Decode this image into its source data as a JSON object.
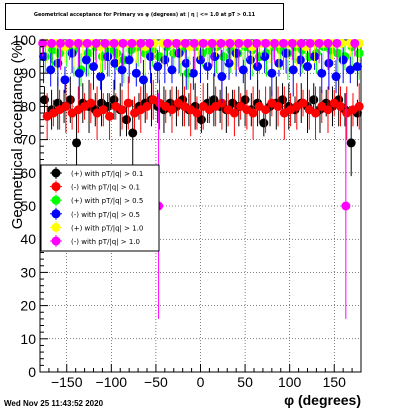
{
  "title": "Geometrical acceptance for Primary vs φ (degrees) at | η | <= 1.0 at pT > 0.11",
  "timestamp": "Wed Nov 25 11:43:52 2020",
  "chart_data": {
    "type": "scatter",
    "xlabel": "φ (degrees)",
    "ylabel": "Geometrical acceptance (%)",
    "xlim": [
      -180,
      180
    ],
    "ylim": [
      0,
      100
    ],
    "xticks": [
      -150,
      -100,
      -50,
      0,
      50,
      100,
      150
    ],
    "yticks": [
      0,
      10,
      20,
      30,
      40,
      50,
      60,
      70,
      80,
      90,
      100
    ],
    "grid": true,
    "legend_position": "left-middle",
    "series": [
      {
        "name": "(+) with pT/|q| > 0.1",
        "color": "#000000",
        "x": [
          -175,
          -167,
          -160,
          -153,
          -146,
          -139,
          -132,
          -125,
          -118,
          -111,
          -104,
          -97,
          -90,
          -83,
          -76,
          -69,
          -62,
          -55,
          -48,
          -41,
          -34,
          -27,
          -20,
          -13,
          -6,
          1,
          8,
          15,
          22,
          29,
          36,
          43,
          50,
          57,
          64,
          71,
          78,
          85,
          92,
          99,
          106,
          113,
          120,
          127,
          134,
          141,
          148,
          155,
          162,
          169,
          176
        ],
        "y": [
          82,
          79,
          81,
          80,
          82,
          69,
          81,
          80,
          79,
          81,
          80,
          82,
          79,
          76,
          72,
          80,
          81,
          82,
          80,
          79,
          81,
          80,
          82,
          79,
          80,
          76,
          81,
          82,
          80,
          79,
          81,
          80,
          82,
          79,
          81,
          75,
          80,
          81,
          82,
          80,
          79,
          81,
          80,
          82,
          79,
          81,
          80,
          82,
          79,
          69,
          78
        ]
      },
      {
        "name": "(-) with pT/|q| > 0.1",
        "color": "#ff0000",
        "x": [
          -172,
          -165,
          -158,
          -151,
          -144,
          -137,
          -130,
          -123,
          -116,
          -109,
          -102,
          -95,
          -88,
          -81,
          -74,
          -67,
          -60,
          -53,
          -46,
          -39,
          -32,
          -25,
          -18,
          -11,
          -4,
          3,
          10,
          17,
          24,
          31,
          38,
          45,
          52,
          59,
          66,
          73,
          80,
          87,
          94,
          101,
          108,
          115,
          122,
          129,
          136,
          143,
          150,
          157,
          164,
          171,
          178
        ],
        "y": [
          77,
          78,
          79,
          80,
          78,
          79,
          80,
          81,
          78,
          79,
          77,
          80,
          79,
          81,
          78,
          79,
          80,
          82,
          81,
          80,
          79,
          81,
          80,
          79,
          78,
          80,
          79,
          80,
          81,
          79,
          78,
          80,
          79,
          78,
          80,
          79,
          81,
          80,
          78,
          79,
          80,
          81,
          79,
          78,
          80,
          79,
          81,
          80,
          78,
          79,
          80
        ]
      },
      {
        "name": "(+) with pT/|q| > 0.5",
        "color": "#00ff00",
        "x": [
          -174,
          -166,
          -158,
          -150,
          -142,
          -134,
          -126,
          -118,
          -110,
          -102,
          -94,
          -86,
          -78,
          -70,
          -62,
          -54,
          -46,
          -38,
          -30,
          -22,
          -14,
          -6,
          2,
          10,
          18,
          26,
          34,
          42,
          50,
          58,
          66,
          74,
          82,
          90,
          98,
          106,
          114,
          122,
          130,
          138,
          146,
          154,
          162,
          170,
          178
        ],
        "y": [
          95,
          97,
          96,
          98,
          97,
          91,
          96,
          98,
          95,
          97,
          96,
          94,
          97,
          98,
          96,
          97,
          95,
          98,
          96,
          97,
          90,
          98,
          96,
          97,
          98,
          95,
          97,
          96,
          98,
          97,
          95,
          96,
          98,
          97,
          96,
          98,
          97,
          95,
          96,
          98,
          97,
          96,
          95,
          98,
          96
        ]
      },
      {
        "name": "(-) with pT/|q| > 0.5",
        "color": "#0000ff",
        "x": [
          -176,
          -168,
          -160,
          -152,
          -144,
          -136,
          -128,
          -120,
          -112,
          -104,
          -96,
          -88,
          -80,
          -72,
          -64,
          -56,
          -48,
          -40,
          -32,
          -24,
          -16,
          -8,
          0,
          8,
          16,
          24,
          32,
          40,
          48,
          56,
          64,
          72,
          80,
          88,
          96,
          104,
          112,
          120,
          128,
          136,
          144,
          152,
          160,
          168,
          176
        ],
        "y": [
          95,
          91,
          93,
          88,
          96,
          90,
          94,
          92,
          89,
          95,
          93,
          91,
          94,
          90,
          88,
          95,
          92,
          94,
          91,
          96,
          93,
          90,
          94,
          92,
          95,
          89,
          93,
          96,
          91,
          94,
          92,
          95,
          90,
          93,
          96,
          91,
          94,
          92,
          95,
          90,
          93,
          89,
          94,
          91,
          92
        ]
      },
      {
        "name": "(+) with pT/|q| > 1.0",
        "color": "#ffff00",
        "x": [
          -172,
          -162,
          -152,
          -142,
          -132,
          -122,
          -112,
          -102,
          -92,
          -82,
          -72,
          -62,
          -52,
          -42,
          -32,
          -22,
          -12,
          -2,
          8,
          18,
          28,
          38,
          48,
          58,
          68,
          78,
          88,
          98,
          108,
          118,
          128,
          138,
          148,
          158,
          168,
          178
        ],
        "y": [
          99,
          99,
          98,
          99,
          99,
          99,
          98,
          99,
          99,
          99,
          99,
          98,
          99,
          99,
          99,
          99,
          98,
          99,
          99,
          99,
          99,
          99,
          99,
          98,
          99,
          99,
          99,
          99,
          99,
          98,
          99,
          99,
          99,
          99,
          99,
          99
        ]
      },
      {
        "name": "(-) with pT/|q| > 1.0",
        "color": "#ff00ff",
        "x": [
          -177,
          -167,
          -157,
          -147,
          -137,
          -127,
          -117,
          -107,
          -97,
          -87,
          -77,
          -67,
          -57,
          -47,
          -37,
          -27,
          -17,
          -7,
          3,
          13,
          23,
          33,
          43,
          53,
          63,
          73,
          83,
          93,
          103,
          113,
          123,
          133,
          143,
          153,
          163,
          173
        ],
        "y": [
          99,
          99,
          99,
          99,
          99,
          99,
          99,
          99,
          99,
          99,
          99,
          99,
          99,
          50,
          99,
          99,
          99,
          99,
          99,
          99,
          99,
          99,
          99,
          99,
          99,
          99,
          99,
          99,
          99,
          99,
          99,
          99,
          99,
          99,
          50,
          99
        ]
      }
    ]
  }
}
